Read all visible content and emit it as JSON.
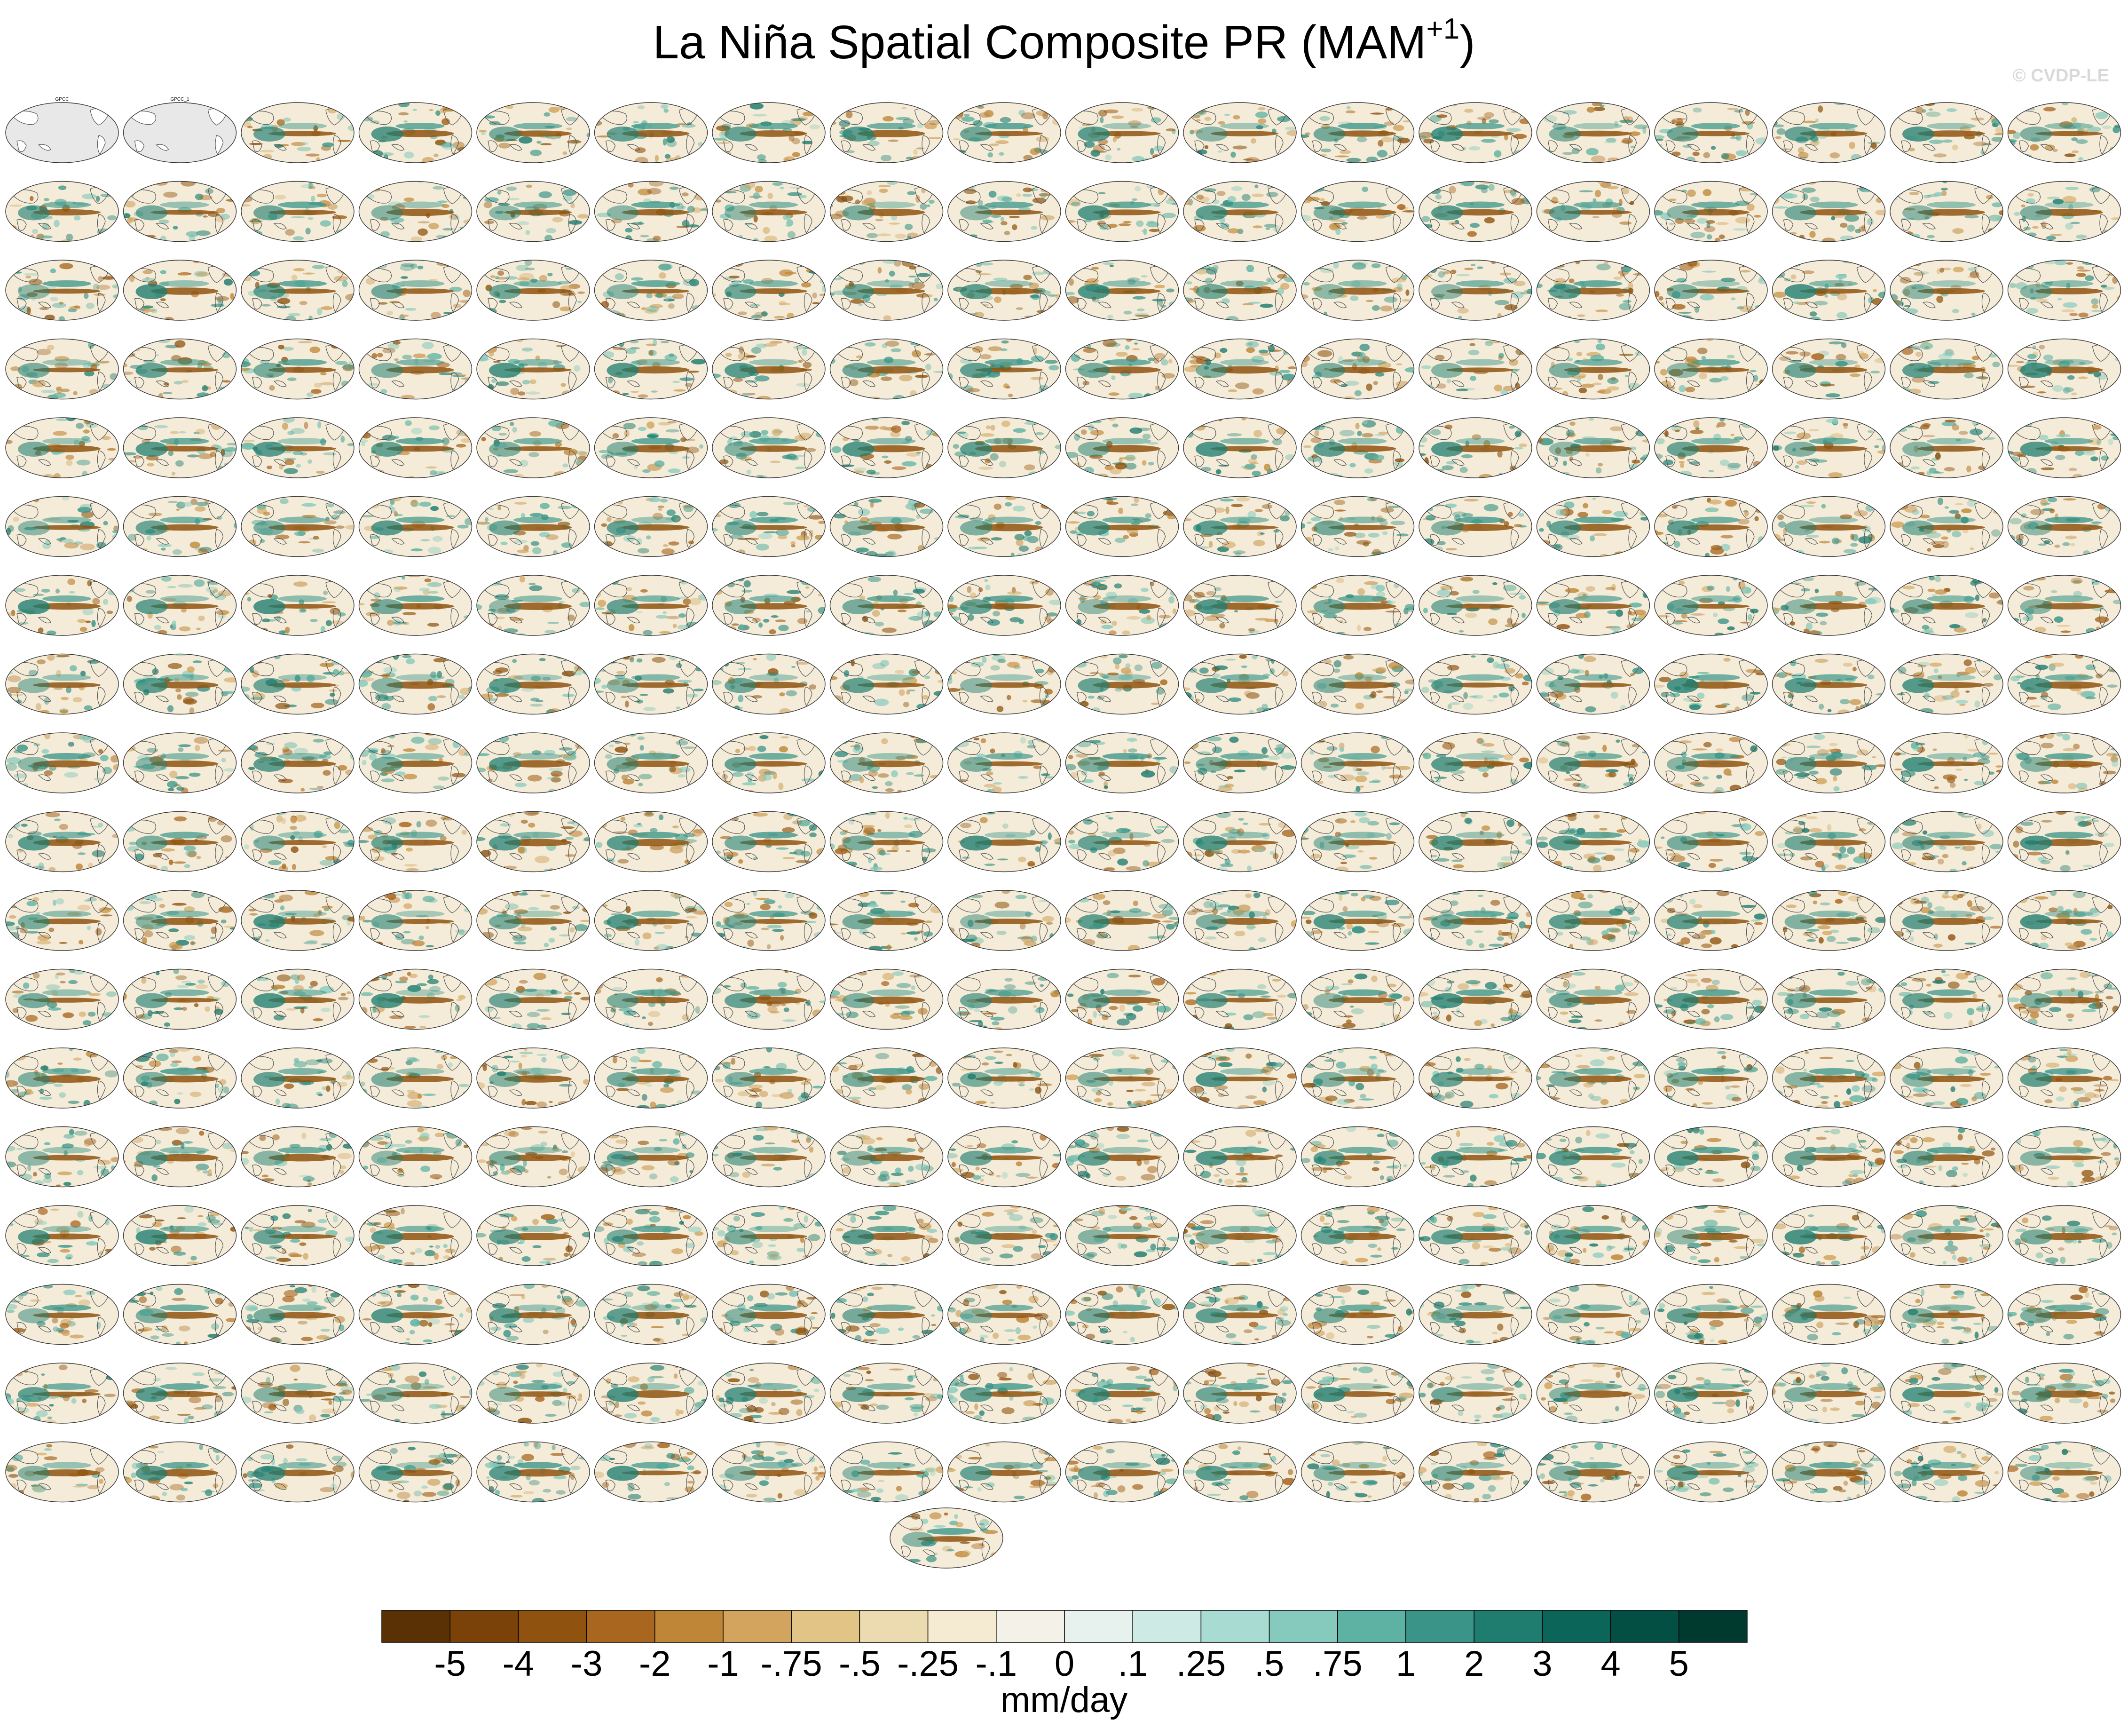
{
  "header": {
    "title_main": "La Niña Spatial Composite PR (MAM",
    "title_sup": "+1",
    "title_close": ")",
    "copyright": "© CVDP-LE"
  },
  "chart_data": {
    "type": "heatmap",
    "title": "La Niña Spatial Composite PR (MAM+1)",
    "variable": "PR",
    "season": "MAM+1",
    "panel_grid": {
      "rows": 18,
      "columns": 18,
      "extra_panels_bottom": 1,
      "total_panels": 325
    },
    "panels": [
      {
        "label": "GPCC",
        "type": "observations"
      },
      {
        "label": "GPCC_1",
        "type": "observations"
      }
    ],
    "colorbar": {
      "units": "mm/day",
      "tick_labels": [
        "-5",
        "-4",
        "-3",
        "-2",
        "-1",
        "-.75",
        "-.5",
        "-.25",
        "-.1",
        "0",
        ".1",
        ".25",
        ".5",
        ".75",
        "1",
        "2",
        "3",
        "4",
        "5"
      ],
      "colors": [
        "#5a3005",
        "#7a4208",
        "#8f530f",
        "#a8661f",
        "#bf8637",
        "#d2a45e",
        "#e2c487",
        "#ecdab0",
        "#f5ead2",
        "#f4f1e8",
        "#e7f2ef",
        "#cdeae4",
        "#a8dcd2",
        "#85cabd",
        "#5eb2a3",
        "#3a9588",
        "#1f7d70",
        "#0c6559",
        "#034f44",
        "#003a2f"
      ]
    }
  }
}
